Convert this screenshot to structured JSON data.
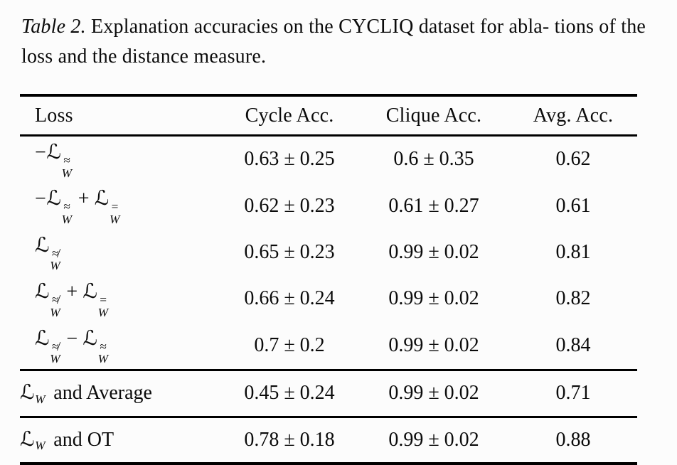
{
  "caption": {
    "label": "Table 2.",
    "line1": "Explanation accuracies on the CYCLIQ dataset for abla-",
    "line2": "tions of the loss and the distance measure."
  },
  "table": {
    "script_l": "ℒ",
    "headers": {
      "loss": "Loss",
      "cycle": "Cycle Acc.",
      "clique": "Clique Acc.",
      "avg": "Avg. Acc."
    },
    "rows": [
      {
        "loss": {
          "prefix": "−",
          "t1sup": "≈",
          "t1sub": "W"
        },
        "cycle": "0.63 ± 0.25",
        "clique": "0.6 ± 0.35",
        "avg": "0.62"
      },
      {
        "loss": {
          "prefix": "−",
          "t1sup": "≈",
          "t1sub": "W",
          "op": "+",
          "t2sup": "=",
          "t2sub": "W"
        },
        "cycle": "0.62 ± 0.23",
        "clique": "0.61 ± 0.27",
        "avg": "0.61"
      },
      {
        "loss": {
          "t1sup": "≉",
          "t1sub": "W"
        },
        "cycle": "0.65 ± 0.23",
        "clique": "0.99 ± 0.02",
        "avg": "0.81"
      },
      {
        "loss": {
          "t1sup": "≉",
          "t1sub": "W",
          "op": "+",
          "t2sup": "=",
          "t2sub": "W"
        },
        "cycle": "0.66 ± 0.24",
        "clique": "0.99 ± 0.02",
        "avg": "0.82"
      },
      {
        "loss": {
          "t1sup": "≉",
          "t1sub": "W",
          "op": "−",
          "t2sup": "≈",
          "t2sub": "W"
        },
        "cycle": "0.7 ± 0.2",
        "clique": "0.99 ± 0.02",
        "avg": "0.84"
      },
      {
        "loss": {
          "sub": "W",
          "suffix": "and Average"
        },
        "cycle": "0.45 ± 0.24",
        "clique": "0.99 ± 0.02",
        "avg": "0.71"
      },
      {
        "loss": {
          "sub": "W",
          "suffix": "and OT"
        },
        "cycle": "0.78 ± 0.18",
        "clique": "0.99 ± 0.02",
        "avg": "0.88"
      }
    ]
  }
}
